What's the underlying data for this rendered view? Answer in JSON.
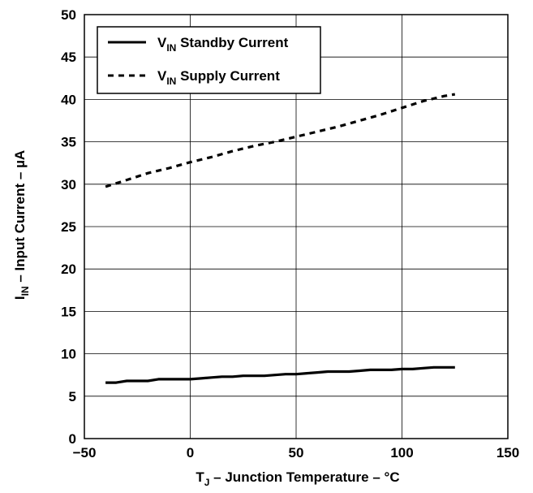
{
  "chart_data": {
    "type": "line",
    "x_axis": {
      "label_main": "T",
      "label_sub": "J",
      "label_rest": " – Junction Temperature – °C",
      "range": [
        -50,
        150
      ],
      "ticks": [
        -50,
        0,
        50,
        100,
        150
      ],
      "tick_labels": [
        "−50",
        "0",
        "50",
        "100",
        "150"
      ]
    },
    "y_axis": {
      "label_main": "I",
      "label_sub": "IN",
      "label_rest": " – Input Current – µA",
      "range": [
        0,
        50
      ],
      "ticks": [
        0,
        5,
        10,
        15,
        20,
        25,
        30,
        35,
        40,
        45,
        50
      ],
      "tick_labels": [
        "0",
        "5",
        "10",
        "15",
        "20",
        "25",
        "30",
        "35",
        "40",
        "45",
        "50"
      ]
    },
    "grid": true,
    "legend_placement": "top-left",
    "series": [
      {
        "name_main": "V",
        "name_sub": "IN",
        "name_rest": " Standby Current",
        "style": "solid",
        "color": "#000000",
        "x": [
          -40,
          -35,
          -30,
          -25,
          -20,
          -15,
          -10,
          -5,
          0,
          5,
          10,
          15,
          20,
          25,
          30,
          35,
          40,
          45,
          50,
          55,
          60,
          65,
          70,
          75,
          80,
          85,
          90,
          95,
          100,
          105,
          110,
          115,
          120,
          125
        ],
        "y": [
          6.6,
          6.6,
          6.8,
          6.8,
          6.8,
          7.0,
          7.0,
          7.0,
          7.0,
          7.1,
          7.2,
          7.3,
          7.3,
          7.4,
          7.4,
          7.4,
          7.5,
          7.6,
          7.6,
          7.7,
          7.8,
          7.9,
          7.9,
          7.9,
          8.0,
          8.1,
          8.1,
          8.1,
          8.2,
          8.2,
          8.3,
          8.4,
          8.4,
          8.4
        ]
      },
      {
        "name_main": "V",
        "name_sub": "IN",
        "name_rest": " Supply Current",
        "style": "dashed",
        "color": "#000000",
        "x": [
          -40,
          -30,
          -20,
          -10,
          0,
          10,
          20,
          30,
          40,
          50,
          60,
          70,
          80,
          90,
          100,
          110,
          120,
          125
        ],
        "y": [
          29.7,
          30.5,
          31.3,
          31.9,
          32.6,
          33.2,
          33.9,
          34.5,
          35.0,
          35.6,
          36.2,
          36.8,
          37.5,
          38.2,
          39.0,
          39.8,
          40.4,
          40.6
        ]
      }
    ]
  }
}
